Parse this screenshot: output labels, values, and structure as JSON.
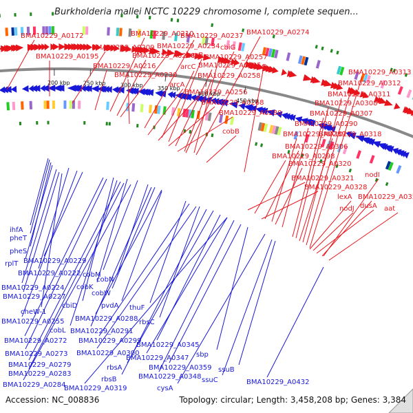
{
  "title": "Burkholderia mallei NCTC 10229 chromosome I, complete sequen...",
  "footer": {
    "accession": "Accession: NC_008836",
    "summary": "Topology: circular; Length: 3,458,208 bp; Genes: 3,384"
  },
  "colors": {
    "forward": "#e8141c",
    "reverse": "#1818d8",
    "backbone": "#888888"
  },
  "ticks": [
    "200 kbp",
    "250 kbp",
    "300 kbp",
    "350 kbp",
    "400 kbp",
    "450 kbp"
  ],
  "forward_labels": [
    "BMA10229_A0172",
    "BMA10229_A0210",
    "BMA10229_A0237",
    "BMA10229_A0274",
    "BMA10229_A0209",
    "BMA10229_A0234",
    "cbiG",
    "BMA10229_A0195",
    "BMA10229_A0228",
    "arcB",
    "BMA10229_A0257",
    "BMA10229_A0216",
    "arcC",
    "BMA10229_A0235",
    "cobO",
    "BMA10229_A0230",
    "BMA10229_A0258",
    "arcA",
    "BMA10229_A0313",
    "BMA10229_A0312",
    "BMA10229_A0311",
    "BMA10229_A0256",
    "BMA10229_A0308",
    "BMA10229_A0268",
    "BMA10229_A0307",
    "BMA10229_A0280",
    "cobB",
    "BMA10229_A0290",
    "BMA10229_A0289",
    "BMA10229_A0318",
    "BMA10229_A0306",
    "BMA10229_A0298",
    "BMA10229_A0320",
    "nodI",
    "BMA10229_A0321",
    "BMA10229_A0328",
    "lexA",
    "BMA10229_A0357",
    "nodJ",
    "dusA",
    "aat"
  ],
  "reverse_labels": [
    "ihfA",
    "pheT",
    "pheS",
    "rplT",
    "BMA10229_A0229",
    "BMA10229_A0222",
    "cobM",
    "BMA10229_A0224",
    "cobK",
    "cobN",
    "BMA10229_A0227",
    "cobW",
    "cbiD",
    "pvdA",
    "cheW-1",
    "BMA10229_A0288",
    "thuF",
    "BMA10229_A0255",
    "cobL",
    "rbsC",
    "BMA10229_A0291",
    "BMA10229_A0272",
    "BMA10229_A0299",
    "BMA10229_A0345",
    "BMA10229_A0273",
    "BMA10229_A0300",
    "BMA10229_A0347",
    "sbp",
    "BMA10229_A0279",
    "rbsA",
    "BMA10229_A0359",
    "BMA10229_A0283",
    "BMA10229_A0348",
    "ssuB",
    "rbsB",
    "ssuC",
    "BMA10229_A0432",
    "BMA10229_A0284",
    "BMA10229_A0319",
    "cysA"
  ]
}
